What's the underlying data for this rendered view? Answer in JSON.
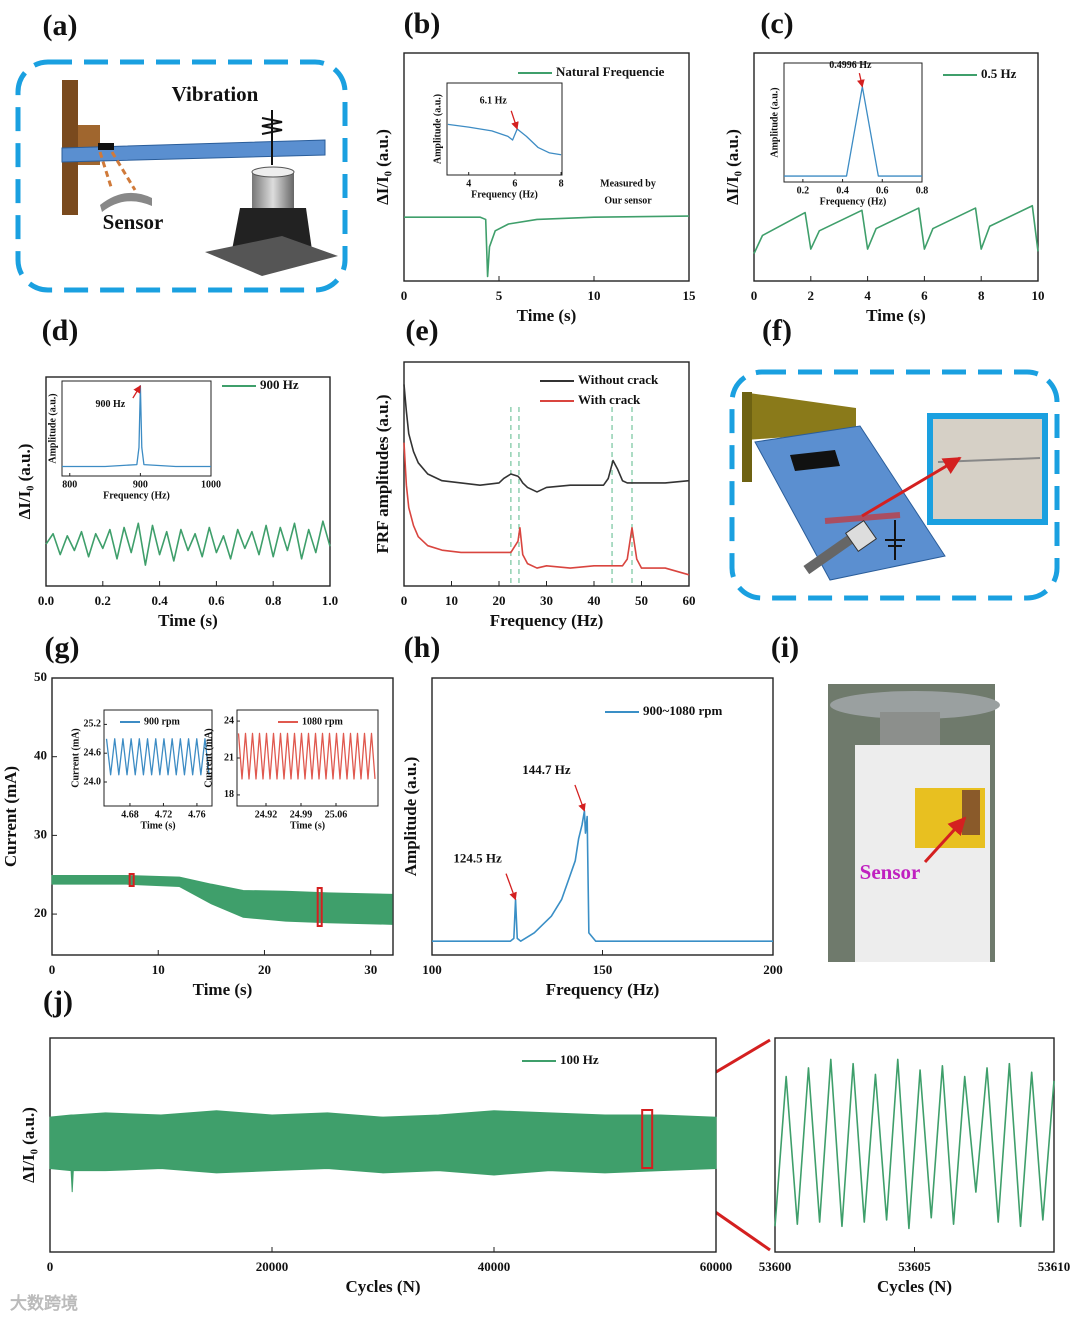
{
  "chart_data": [
    {
      "type": "line",
      "label": "(b)",
      "xlabel": "Time (s)",
      "ylabel": "ΔI/I₀ (a.u.)",
      "xlim": [
        0,
        15
      ],
      "ylim": [
        0,
        1
      ],
      "xticks": [
        0,
        5,
        10,
        15
      ],
      "x": [
        0,
        2,
        4,
        4.3,
        4.4,
        4.5,
        4.8,
        5.5,
        7,
        10,
        15
      ],
      "series": [
        {
          "name": "Natural Frequencie",
          "color": "#3f9f6b",
          "values": [
            0.28,
            0.28,
            0.28,
            0.27,
            0.02,
            0.15,
            0.22,
            0.25,
            0.27,
            0.28,
            0.285
          ]
        }
      ],
      "notes": [
        "Measured by",
        "Our sensor"
      ],
      "insets": [
        {
          "type": "line",
          "xlabel": "Frequency (Hz)",
          "ylabel": "Amplitude (a.u.)",
          "xlim": [
            3.06,
            8.04
          ],
          "ylim": [
            0,
            1
          ],
          "xticks": [
            4,
            6,
            8
          ],
          "x": [
            3.1,
            4,
            5,
            5.7,
            5.9,
            6.1,
            6.5,
            7,
            7.5,
            8
          ],
          "series": [
            {
              "color": "#3d8cc4",
              "values": [
                0.55,
                0.52,
                0.48,
                0.42,
                0.38,
                0.5,
                0.42,
                0.3,
                0.24,
                0.22
              ]
            }
          ],
          "annotations": [
            {
              "text": "6.1 Hz",
              "x": 6.1,
              "y": 0.5
            }
          ]
        }
      ]
    },
    {
      "type": "line",
      "label": "(c)",
      "xlabel": "Time (s)",
      "ylabel": "ΔI/I₀ (a.u.)",
      "xlim": [
        0,
        10
      ],
      "ylim": [
        0,
        1
      ],
      "xticks": [
        0,
        2,
        4,
        6,
        8,
        10
      ],
      "x": [
        0,
        0.3,
        1.8,
        2.0,
        2.3,
        3.8,
        4.0,
        4.3,
        5.8,
        6.0,
        6.3,
        7.8,
        8.0,
        8.3,
        9.8,
        10
      ],
      "series": [
        {
          "name": "0.5 Hz",
          "color": "#3f9f6b",
          "values": [
            0.12,
            0.2,
            0.3,
            0.14,
            0.22,
            0.31,
            0.14,
            0.23,
            0.32,
            0.14,
            0.23,
            0.32,
            0.14,
            0.24,
            0.33,
            0.13
          ]
        }
      ],
      "insets": [
        {
          "type": "line",
          "xlabel": "Frequency (Hz)",
          "ylabel": "Amplitude (a.u.)",
          "xlim": [
            0.105,
            0.8
          ],
          "ylim": [
            0,
            1
          ],
          "xticks": [
            0.2,
            0.4,
            0.6,
            0.8
          ],
          "x": [
            0.105,
            0.42,
            0.4996,
            0.58,
            0.8
          ],
          "series": [
            {
              "color": "#3d8cc4",
              "values": [
                0.05,
                0.05,
                0.8,
                0.05,
                0.05
              ]
            }
          ],
          "annotations": [
            {
              "text": "0.4996 Hz",
              "x": 0.4996,
              "y": 0.8
            }
          ]
        }
      ]
    },
    {
      "type": "line",
      "label": "(d)",
      "xlabel": "Time (s)",
      "ylabel": "ΔI/I₀ (a.u.)",
      "xlim": [
        0,
        1
      ],
      "ylim": [
        0,
        1
      ],
      "xticks": [
        {
          "value": 0,
          "label": "0.0"
        },
        0.2,
        0.4,
        0.6,
        0.8,
        {
          "value": 1,
          "label": "1.0"
        }
      ],
      "x": [
        0,
        0.025,
        0.05,
        0.075,
        0.1,
        0.125,
        0.15,
        0.175,
        0.2,
        0.225,
        0.25,
        0.275,
        0.3,
        0.325,
        0.35,
        0.375,
        0.4,
        0.425,
        0.45,
        0.475,
        0.5,
        0.525,
        0.55,
        0.575,
        0.6,
        0.625,
        0.65,
        0.675,
        0.7,
        0.725,
        0.75,
        0.775,
        0.8,
        0.825,
        0.85,
        0.875,
        0.9,
        0.925,
        0.95,
        0.975,
        1
      ],
      "series": [
        {
          "name": "900 Hz",
          "color": "#3f9f6b",
          "values": [
            0.2,
            0.25,
            0.15,
            0.24,
            0.17,
            0.26,
            0.14,
            0.25,
            0.18,
            0.27,
            0.13,
            0.28,
            0.16,
            0.3,
            0.1,
            0.29,
            0.15,
            0.26,
            0.12,
            0.27,
            0.17,
            0.25,
            0.14,
            0.28,
            0.16,
            0.24,
            0.13,
            0.27,
            0.18,
            0.26,
            0.15,
            0.29,
            0.14,
            0.28,
            0.17,
            0.3,
            0.13,
            0.27,
            0.16,
            0.31,
            0.19
          ]
        }
      ],
      "insets": [
        {
          "type": "line",
          "xlabel": "Frequency (Hz)",
          "ylabel": "Amplitude (a.u.)",
          "xlim": [
            789,
            1000
          ],
          "ylim": [
            0,
            1
          ],
          "xticks": [
            800,
            900,
            1000
          ],
          "x": [
            789,
            850,
            895,
            898,
            900,
            902,
            905,
            950,
            1000
          ],
          "series": [
            {
              "color": "#3d8cc4",
              "values": [
                0.1,
                0.1,
                0.12,
                0.3,
                0.95,
                0.3,
                0.12,
                0.1,
                0.1
              ]
            }
          ],
          "annotations": [
            {
              "text": "900 Hz",
              "x": 900,
              "y": 0.95
            }
          ]
        }
      ]
    },
    {
      "type": "line",
      "label": "(e)",
      "xlabel": "Frequency (Hz)",
      "ylabel": "FRF amplitudes (a.u.)",
      "xlim": [
        0,
        60
      ],
      "ylim": [
        0,
        1
      ],
      "xticks": [
        0,
        10,
        20,
        30,
        40,
        50,
        60
      ],
      "x": [
        0,
        0.5,
        1,
        2,
        3,
        5,
        8,
        12,
        16,
        20,
        21,
        22.5,
        24,
        24.4,
        25,
        26,
        28,
        30,
        35,
        40,
        42,
        43,
        44,
        45,
        46,
        47,
        48,
        49,
        50,
        55,
        60
      ],
      "series": [
        {
          "name": "Without crack",
          "color": "#333333",
          "values": [
            0.9,
            0.78,
            0.68,
            0.6,
            0.55,
            0.5,
            0.47,
            0.46,
            0.45,
            0.46,
            0.48,
            0.5,
            0.49,
            0.48,
            0.46,
            0.44,
            0.42,
            0.44,
            0.45,
            0.45,
            0.45,
            0.48,
            0.56,
            0.52,
            0.47,
            0.46,
            0.46,
            0.46,
            0.46,
            0.46,
            0.47
          ]
        },
        {
          "name": "With crack",
          "color": "#d9453f",
          "values": [
            0.64,
            0.45,
            0.35,
            0.27,
            0.22,
            0.18,
            0.16,
            0.15,
            0.15,
            0.15,
            0.15,
            0.15,
            0.2,
            0.26,
            0.14,
            0.1,
            0.08,
            0.09,
            0.08,
            0.09,
            0.09,
            0.09,
            0.09,
            0.09,
            0.09,
            0.12,
            0.26,
            0.12,
            0.08,
            0.08,
            0.05
          ]
        }
      ],
      "markers": [
        22.5,
        24.2,
        43.8,
        48
      ]
    },
    {
      "type": "band",
      "label": "(g)",
      "xlabel": "Time (s)",
      "ylabel": "Current (mA)",
      "xlim": [
        0,
        32.1
      ],
      "ylim": [
        14.8,
        50
      ],
      "xticks": [
        0,
        10,
        20,
        30
      ],
      "yticks": [
        20,
        30,
        40,
        50
      ],
      "x": [
        0,
        7,
        12,
        15,
        18,
        22,
        26,
        32
      ],
      "band": {
        "color": "#3f9f6b",
        "upper": [
          24.9,
          24.9,
          24.7,
          23.8,
          23,
          22.9,
          22.7,
          22.5
        ],
        "lower": [
          23.8,
          23.8,
          23.5,
          21.3,
          19.6,
          19.1,
          18.9,
          18.7
        ]
      },
      "highlights": [
        7.5,
        25.2
      ],
      "insets": [
        {
          "type": "line",
          "xlabel": "Time (s)",
          "ylabel": "Current (mA)",
          "xlim": [
            4.649,
            4.778
          ],
          "ylim": [
            23.5,
            25.5
          ],
          "xticks": [
            4.68,
            4.72,
            4.76
          ],
          "yticks": [
            {
              "value": 24,
              "label": "24.0"
            },
            24.6,
            25.2
          ],
          "x": [
            4.652,
            4.6569,
            4.6618,
            4.6667,
            4.6716,
            4.6765,
            4.6814,
            4.6863,
            4.6912,
            4.6961,
            4.701,
            4.7059,
            4.7108,
            4.7157,
            4.7206,
            4.7255,
            4.7304,
            4.7353,
            4.7402,
            4.7451,
            4.75,
            4.7549,
            4.7598,
            4.7647,
            4.7696,
            4.7745
          ],
          "series": [
            {
              "name": "900 rpm",
              "color": "#3d8cc4",
              "values": [
                24.9,
                24.15,
                24.9,
                24.15,
                24.9,
                24.15,
                24.9,
                24.15,
                24.9,
                24.15,
                24.9,
                24.15,
                24.9,
                24.15,
                24.9,
                24.15,
                24.9,
                24.15,
                24.9,
                24.15,
                24.9,
                24.15,
                24.9,
                24.15,
                24.9,
                24.15
              ]
            }
          ]
        },
        {
          "type": "line",
          "xlabel": "Time (s)",
          "ylabel": "Current (mA)",
          "xlim": [
            24.862,
            25.144
          ],
          "ylim": [
            17.1,
            24.9
          ],
          "xticks": [
            24.92,
            24.99,
            25.06
          ],
          "yticks": [
            18,
            21,
            24
          ],
          "x": [
            24.865,
            24.872,
            24.879,
            24.886,
            24.893,
            24.9,
            24.907,
            24.914,
            24.921,
            24.928,
            24.935,
            24.942,
            24.949,
            24.956,
            24.963,
            24.97,
            24.977,
            24.984,
            24.991,
            24.998,
            25.005,
            25.012,
            25.019,
            25.026,
            25.033,
            25.04,
            25.047,
            25.054,
            25.061,
            25.068,
            25.075,
            25.082,
            25.089,
            25.096,
            25.103,
            25.11,
            25.117,
            25.124,
            25.131,
            25.138
          ],
          "series": [
            {
              "name": "1080 rpm",
              "color": "#e0594f",
              "values": [
                23,
                19.3,
                23,
                19.3,
                23,
                19.3,
                23,
                19.3,
                23,
                19.3,
                23,
                19.3,
                23,
                19.3,
                23,
                19.3,
                23,
                19.3,
                23,
                19.3,
                23,
                19.3,
                23,
                19.3,
                23,
                19.3,
                23,
                19.3,
                23,
                19.3,
                23,
                19.3,
                23,
                19.3,
                23,
                19.3,
                23,
                19.3,
                23,
                19.3
              ]
            }
          ]
        }
      ]
    },
    {
      "type": "line",
      "label": "(h)",
      "xlabel": "Frequency (Hz)",
      "ylabel": "Amplitude (a.u.)",
      "xlim": [
        100,
        200
      ],
      "ylim": [
        0,
        1
      ],
      "xticks": [
        100,
        150,
        200
      ],
      "x": [
        100,
        110,
        120,
        123,
        124,
        124.5,
        125,
        126,
        130,
        135,
        138,
        140,
        142,
        143,
        144,
        144.7,
        145,
        145.5,
        146,
        148,
        150,
        175,
        200
      ],
      "series": [
        {
          "name": "900~1080 rpm",
          "color": "#3a8fc6",
          "values": [
            0.05,
            0.05,
            0.05,
            0.05,
            0.06,
            0.2,
            0.06,
            0.05,
            0.08,
            0.14,
            0.2,
            0.27,
            0.34,
            0.42,
            0.47,
            0.52,
            0.44,
            0.5,
            0.08,
            0.05,
            0.05,
            0.05,
            0.05
          ]
        }
      ],
      "annotations": [
        {
          "text": "144.7 Hz",
          "x": 144.7,
          "y": 0.52
        },
        {
          "text": "124.5 Hz",
          "x": 124.5,
          "y": 0.2
        }
      ]
    },
    {
      "type": "band",
      "label": "(j)",
      "xlabel": "Cycles (N)",
      "ylabel": "ΔI/I₀ (a.u.)",
      "xlim": [
        0,
        60000
      ],
      "ylim": [
        0,
        1
      ],
      "xticks": [
        0,
        20000,
        40000,
        60000
      ],
      "x": [
        0,
        1900,
        2000,
        2100,
        5000,
        10000,
        15000,
        20000,
        25000,
        30000,
        35000,
        40000,
        45000,
        50000,
        55000,
        60000
      ],
      "band": {
        "name": "100 Hz",
        "color": "#3f9f6b",
        "upper": [
          0.63,
          0.64,
          0.64,
          0.64,
          0.65,
          0.64,
          0.66,
          0.64,
          0.65,
          0.63,
          0.64,
          0.66,
          0.65,
          0.64,
          0.64,
          0.63
        ],
        "lower": [
          0.39,
          0.38,
          0.28,
          0.38,
          0.38,
          0.39,
          0.37,
          0.38,
          0.39,
          0.37,
          0.38,
          0.36,
          0.38,
          0.37,
          0.38,
          0.39
        ]
      },
      "highlights": [
        53800
      ]
    },
    {
      "type": "line",
      "xlabel": "Cycles (N)",
      "xlim": [
        53600,
        53610
      ],
      "ylim": [
        0,
        1
      ],
      "xticks": [
        53600,
        53605,
        53610
      ],
      "x": [
        53600,
        53600.4,
        53600.8,
        53601.2,
        53601.6,
        53602,
        53602.4,
        53602.8,
        53603.2,
        53603.6,
        53604,
        53604.4,
        53604.8,
        53605.2,
        53605.6,
        53606,
        53606.4,
        53606.8,
        53607.2,
        53607.6,
        53608,
        53608.4,
        53608.8,
        53609.2,
        53609.6,
        53610
      ],
      "series": [
        {
          "color": "#3f9f6b",
          "values": [
            0.12,
            0.82,
            0.13,
            0.86,
            0.14,
            0.9,
            0.12,
            0.88,
            0.14,
            0.83,
            0.15,
            0.9,
            0.11,
            0.85,
            0.16,
            0.87,
            0.13,
            0.82,
            0.28,
            0.86,
            0.14,
            0.88,
            0.12,
            0.84,
            0.15,
            0.8
          ]
        }
      ]
    }
  ],
  "illustrations": [
    {
      "label": "(a)",
      "texts": [
        "Vibration",
        "Sensor"
      ]
    },
    {
      "label": "(f)"
    },
    {
      "label": "(i)",
      "texts": [
        "Sensor"
      ]
    }
  ],
  "watermark": "大数跨境"
}
